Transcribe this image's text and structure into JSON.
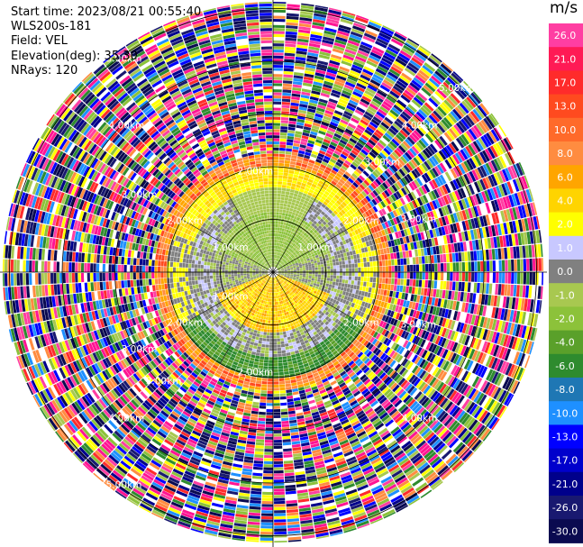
{
  "header": {
    "start_time": "Start time: 2023/08/21 00:55:40",
    "instrument": "WLS200s-181",
    "field": "Field: VEL",
    "elevation": "Elevation(deg): 35.30",
    "nrays": "NRays: 120"
  },
  "colorbar": {
    "unit": "m/s",
    "labels": [
      "26.0",
      "21.0",
      "17.0",
      "13.0",
      "10.0",
      "8.0",
      "6.0",
      "4.0",
      "2.0",
      "1.0",
      "0.0",
      "-1.0",
      "-2.0",
      "-4.0",
      "-6.0",
      "-8.0",
      "-10.0",
      "-13.0",
      "-17.0",
      "-21.0",
      "-26.0",
      "-30.0"
    ],
    "colors": [
      "#ff3ea2",
      "#ff1a55",
      "#ff2b2b",
      "#ff4a1f",
      "#ff6a2a",
      "#ff8c40",
      "#ffa500",
      "#ffd400",
      "#ffff00",
      "#c8c8ff",
      "#808080",
      "#a8c850",
      "#8cc23a",
      "#5aa02a",
      "#2e8b2e",
      "#1f77b4",
      "#1e90ff",
      "#0000ff",
      "#0000cc",
      "#00008b",
      "#191970",
      "#0a0a50"
    ]
  },
  "chart_data": {
    "type": "heatmap",
    "projection": "polar PPI",
    "field": "VEL",
    "nrays": 120,
    "range_ring_labels_inner": [
      "1.00km",
      "1.00km",
      "1.00km"
    ],
    "range_ring_labels_mid": [
      "2.00km",
      "2.00km",
      "2.00km",
      "2.00km",
      "2.00km",
      "2.00km"
    ],
    "range_ring_labels_outer": [
      "3.00km",
      "3.00km",
      "3.00km",
      "3.00km",
      "3.00km",
      "3.00km"
    ],
    "range_ring_labels_far": [
      "4.00km",
      "4.00km",
      "4.00km",
      "4.00km"
    ],
    "range_ring_labels_edge": [
      "5.00km",
      "5.00km",
      "5.00km"
    ],
    "valid_region_km": 2.0,
    "colorscale_range": [
      -30,
      30
    ]
  }
}
